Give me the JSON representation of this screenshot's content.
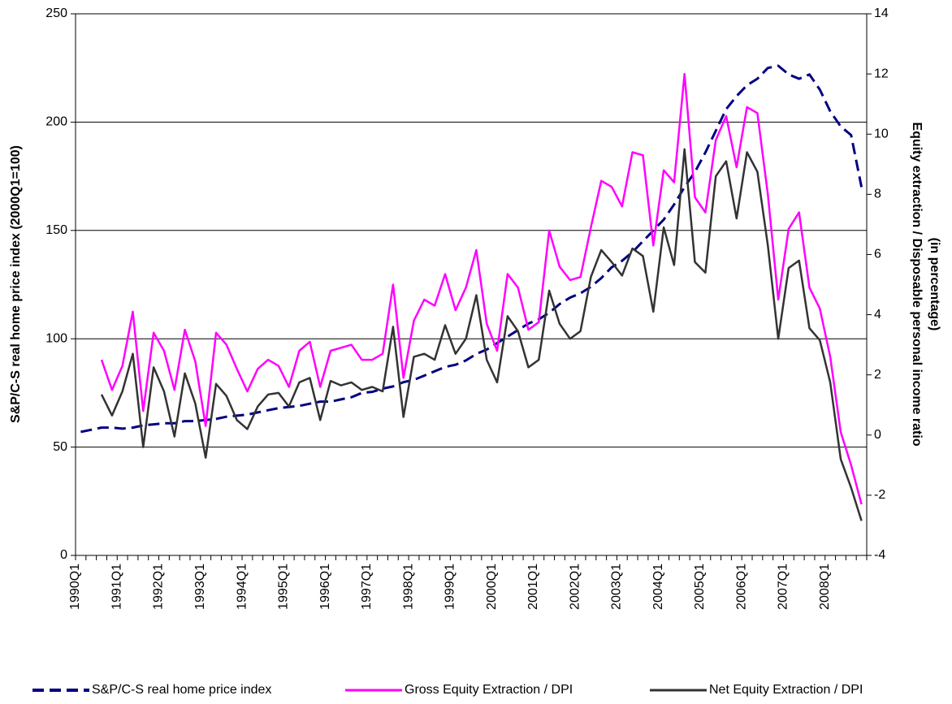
{
  "chart_data": {
    "type": "line",
    "ylabel": "S&P/C-S real home price index (2000Q1=100)",
    "y2label": [
      "Equity extraction / Disposable personal income ratio",
      "(in percentage)"
    ],
    "categories": [
      "1990Q1",
      null,
      null,
      null,
      "1991Q1",
      null,
      null,
      null,
      "1992Q1",
      null,
      null,
      null,
      "1993Q1",
      null,
      null,
      null,
      "1994Q1",
      null,
      null,
      null,
      "1995Q1",
      null,
      null,
      null,
      "1996Q1",
      null,
      null,
      null,
      "1997Q1",
      null,
      null,
      null,
      "1998Q1",
      null,
      null,
      null,
      "1999Q1",
      null,
      null,
      null,
      "2000Q1",
      null,
      null,
      null,
      "2001Q1",
      null,
      null,
      null,
      "2002Q1",
      null,
      null,
      null,
      "2003Q1",
      null,
      null,
      null,
      "2004Q1",
      null,
      null,
      null,
      "2005Q1",
      null,
      null,
      null,
      "2006Q1",
      null,
      null,
      null,
      "2007Q1",
      null,
      null,
      null,
      "2008Q1",
      null,
      null,
      null
    ],
    "series": [
      {
        "name": "S&P/C-S real home price index",
        "color": "#000080",
        "dashed": true,
        "axis": "y",
        "values": [
          57,
          58,
          59,
          59,
          58.5,
          59,
          60,
          60.5,
          61,
          61,
          62,
          62,
          62.5,
          63,
          64,
          64.5,
          65,
          66,
          67,
          68,
          68.5,
          69,
          70,
          71,
          71,
          72,
          73,
          75,
          75.5,
          77,
          78,
          80,
          81,
          83,
          85,
          87,
          88,
          90,
          93,
          95,
          98,
          101,
          104,
          107,
          109,
          112,
          116,
          119,
          121,
          124,
          128,
          133,
          136,
          140,
          145,
          150,
          155,
          162,
          170,
          177,
          186,
          196,
          206,
          212,
          217,
          220,
          225,
          226,
          222,
          220,
          222,
          215,
          205,
          198,
          194,
          170
        ]
      },
      {
        "name": "Gross Equity Extraction / DPI",
        "color": "#ff00ff",
        "axis": "y2",
        "values": [
          null,
          null,
          2.5,
          1.5,
          2.3,
          4.1,
          0.8,
          3.4,
          2.8,
          1.5,
          3.5,
          2.45,
          0.3,
          3.4,
          3.0,
          2.2,
          1.45,
          2.2,
          2.5,
          2.3,
          1.6,
          2.8,
          3.1,
          1.6,
          2.8,
          2.9,
          3.0,
          2.5,
          2.5,
          2.7,
          5.0,
          1.9,
          3.8,
          4.5,
          4.3,
          5.35,
          4.15,
          4.9,
          6.15,
          3.7,
          2.8,
          5.35,
          4.9,
          3.5,
          3.75,
          6.8,
          5.6,
          5.15,
          5.25,
          6.9,
          8.45,
          8.25,
          7.6,
          9.4,
          9.3,
          6.3,
          8.8,
          8.4,
          12.0,
          7.9,
          7.4,
          9.8,
          10.6,
          8.9,
          10.9,
          10.7,
          8.0,
          4.5,
          6.85,
          7.4,
          4.9,
          4.2,
          2.6,
          0.1,
          -1.0,
          -2.3
        ]
      },
      {
        "name": "Net Equity Extraction / DPI",
        "color": "#333333",
        "axis": "y2",
        "values": [
          null,
          null,
          1.35,
          0.65,
          1.45,
          2.7,
          -0.4,
          2.25,
          1.45,
          -0.05,
          2.05,
          1.05,
          -0.75,
          1.7,
          1.3,
          0.5,
          0.2,
          0.95,
          1.35,
          1.4,
          0.95,
          1.75,
          1.9,
          0.5,
          1.8,
          1.65,
          1.75,
          1.5,
          1.6,
          1.45,
          3.6,
          0.6,
          2.6,
          2.7,
          2.5,
          3.65,
          2.7,
          3.2,
          4.65,
          2.5,
          1.75,
          3.95,
          3.45,
          2.25,
          2.5,
          4.8,
          3.7,
          3.2,
          3.45,
          5.25,
          6.15,
          5.75,
          5.3,
          6.2,
          5.95,
          4.1,
          6.9,
          5.65,
          9.5,
          5.75,
          5.4,
          8.6,
          9.1,
          7.2,
          9.4,
          8.75,
          6.3,
          3.2,
          5.55,
          5.8,
          3.55,
          3.15,
          1.75,
          -0.8,
          -1.75,
          -2.85
        ]
      }
    ],
    "ylim": [
      0,
      250
    ],
    "yticks": [
      0,
      50,
      100,
      150,
      200,
      250
    ],
    "y2lim": [
      -4,
      14
    ],
    "y2ticks": [
      -4,
      -2,
      0,
      2,
      4,
      6,
      8,
      10,
      12,
      14
    ],
    "grid": true,
    "legend": "bottom"
  }
}
